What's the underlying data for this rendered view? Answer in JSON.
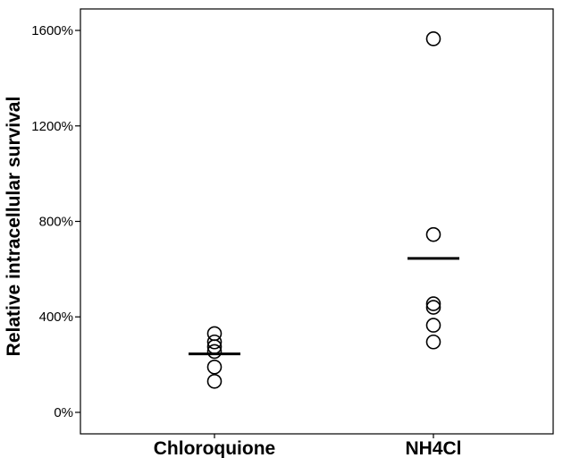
{
  "chart_data": {
    "type": "scatter",
    "title": "",
    "xlabel": "",
    "ylabel": "Relative intracellular survival",
    "categories": [
      "Chloroquione",
      "NH4Cl"
    ],
    "y_ticks": [
      0,
      400,
      800,
      1200,
      1600
    ],
    "y_tick_labels": [
      "0%",
      "400%",
      "800%",
      "1200%",
      "1600%"
    ],
    "ylim": [
      -90,
      1690
    ],
    "grid": false,
    "marker": "open-circle",
    "mean_marker": "horizontal-bar",
    "series": [
      {
        "category": "Chloroquione",
        "values": [
          330,
          295,
          275,
          255,
          190,
          130
        ],
        "mean": 245
      },
      {
        "category": "NH4Cl",
        "values": [
          1565,
          745,
          455,
          440,
          365,
          295
        ],
        "mean": 645
      }
    ]
  }
}
